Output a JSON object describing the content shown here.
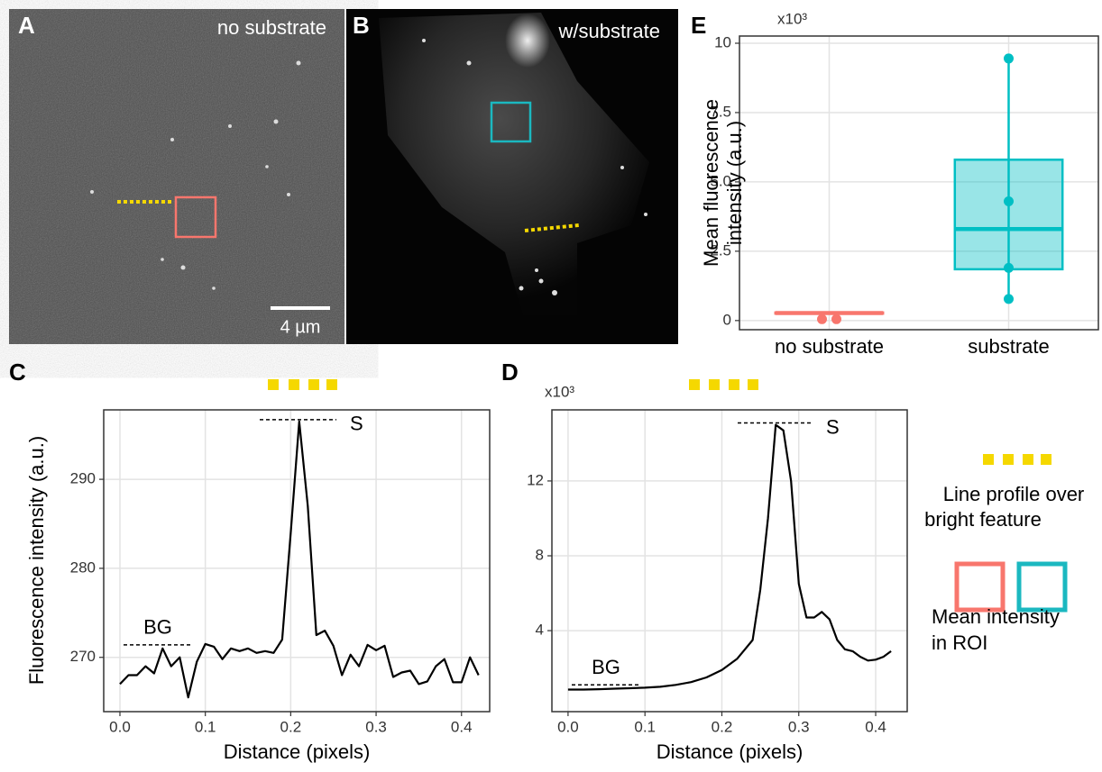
{
  "images": [
    {
      "label": "A",
      "caption": "no substrate",
      "scale_bar": "4 µm"
    },
    {
      "label": "B",
      "caption": "w/substrate"
    }
  ],
  "chart_data": [
    {
      "type": "line",
      "label": "C",
      "xlabel": "Distance (pixels)",
      "ylabel": "Fluorescence intensity (a.u.)",
      "x": [
        0,
        0.01,
        0.02,
        0.03,
        0.04,
        0.05,
        0.06,
        0.07,
        0.08,
        0.09,
        0.1,
        0.11,
        0.12,
        0.13,
        0.14,
        0.15,
        0.16,
        0.17,
        0.18,
        0.19,
        0.2,
        0.21,
        0.22,
        0.23,
        0.24,
        0.25,
        0.26,
        0.27,
        0.28,
        0.29,
        0.3,
        0.31,
        0.32,
        0.33,
        0.34,
        0.35,
        0.36,
        0.37,
        0.38,
        0.39,
        0.4,
        0.41,
        0.42
      ],
      "series": [
        {
          "color": "#000000",
          "values": [
            267,
            268,
            268,
            269,
            268.2,
            271,
            269,
            270,
            265.5,
            269.5,
            271.5,
            271.2,
            269.8,
            271,
            270.7,
            271,
            270.5,
            270.7,
            270.5,
            272,
            284,
            296.5,
            287,
            272.5,
            273,
            271.3,
            268,
            270.3,
            269,
            271.4,
            270.8,
            271.3,
            267.8,
            268.3,
            268.5,
            267,
            267.3,
            269,
            269.8,
            267.2,
            267.2,
            270,
            268
          ]
        }
      ],
      "annotations": [
        {
          "text": "S",
          "y": 296.7
        },
        {
          "text": "BG",
          "y": 271.4
        }
      ],
      "xlim": [
        -0.019,
        0.433
      ],
      "xticks": [
        {
          "value": 0,
          "label": "0.0"
        },
        0.1,
        0.2,
        0.3,
        0.4
      ],
      "ylim": [
        263.9,
        297.8
      ],
      "yticks": [
        270,
        280,
        290
      ],
      "grid": true
    },
    {
      "type": "line",
      "label": "D",
      "multiplier": "x10³",
      "xlabel": "Distance (pixels)",
      "x": [
        0,
        0.02,
        0.04,
        0.06,
        0.08,
        0.1,
        0.12,
        0.14,
        0.16,
        0.18,
        0.2,
        0.22,
        0.23,
        0.24,
        0.25,
        0.26,
        0.27,
        0.28,
        0.29,
        0.3,
        0.31,
        0.32,
        0.33,
        0.34,
        0.35,
        0.36,
        0.37,
        0.38,
        0.39,
        0.4,
        0.41,
        0.42
      ],
      "series": [
        {
          "color": "#000000",
          "values": [
            0.85,
            0.85,
            0.87,
            0.9,
            0.92,
            0.95,
            1.0,
            1.1,
            1.25,
            1.5,
            1.9,
            2.5,
            3.0,
            3.5,
            6.2,
            10,
            15,
            14.7,
            12,
            6.5,
            4.7,
            4.7,
            5.0,
            4.6,
            3.5,
            3.0,
            2.9,
            2.6,
            2.4,
            2.45,
            2.6,
            2.9
          ]
        }
      ],
      "annotations": [
        {
          "text": "S",
          "y": 15.1
        },
        {
          "text": "BG",
          "y": 1.1
        }
      ],
      "xlim": [
        -0.021,
        0.441
      ],
      "xticks": [
        {
          "value": 0,
          "label": "0.0"
        },
        0.1,
        0.2,
        0.3,
        0.4
      ],
      "ylim": [
        -0.33,
        15.8
      ],
      "yticks": [
        4,
        8,
        12
      ],
      "grid": true
    },
    {
      "type": "box",
      "label": "E",
      "multiplier": "x10³",
      "ylabel": [
        "Mean fluorescence",
        "intensity (a.u.)"
      ],
      "categories": [
        "no substrate",
        "substrate"
      ],
      "boxes": [
        {
          "color": "#f8766d",
          "whisker_low": 0.25,
          "q1": 0.25,
          "median": 0.27,
          "q3": 0.29,
          "whisker_high": 0.29,
          "points": [
            0.05,
            0.05
          ]
        },
        {
          "color": "#00bfc4",
          "whisker_low": 0.78,
          "q1": 1.85,
          "median": 3.3,
          "q3": 5.8,
          "whisker_high": 9.45,
          "points": [
            9.45,
            4.3,
            1.9,
            0.78
          ]
        }
      ],
      "ylim": [
        -0.33,
        10.26
      ],
      "yticks": [
        0,
        2.5,
        {
          "value": 5,
          "label": "5.0"
        },
        7.5,
        10
      ],
      "grid": true
    }
  ],
  "legend": {
    "items": [
      {
        "lines": [
          "Line profile over",
          "bright feature"
        ]
      },
      {
        "lines": [
          "Mean intensity",
          "in ROI"
        ]
      }
    ]
  }
}
